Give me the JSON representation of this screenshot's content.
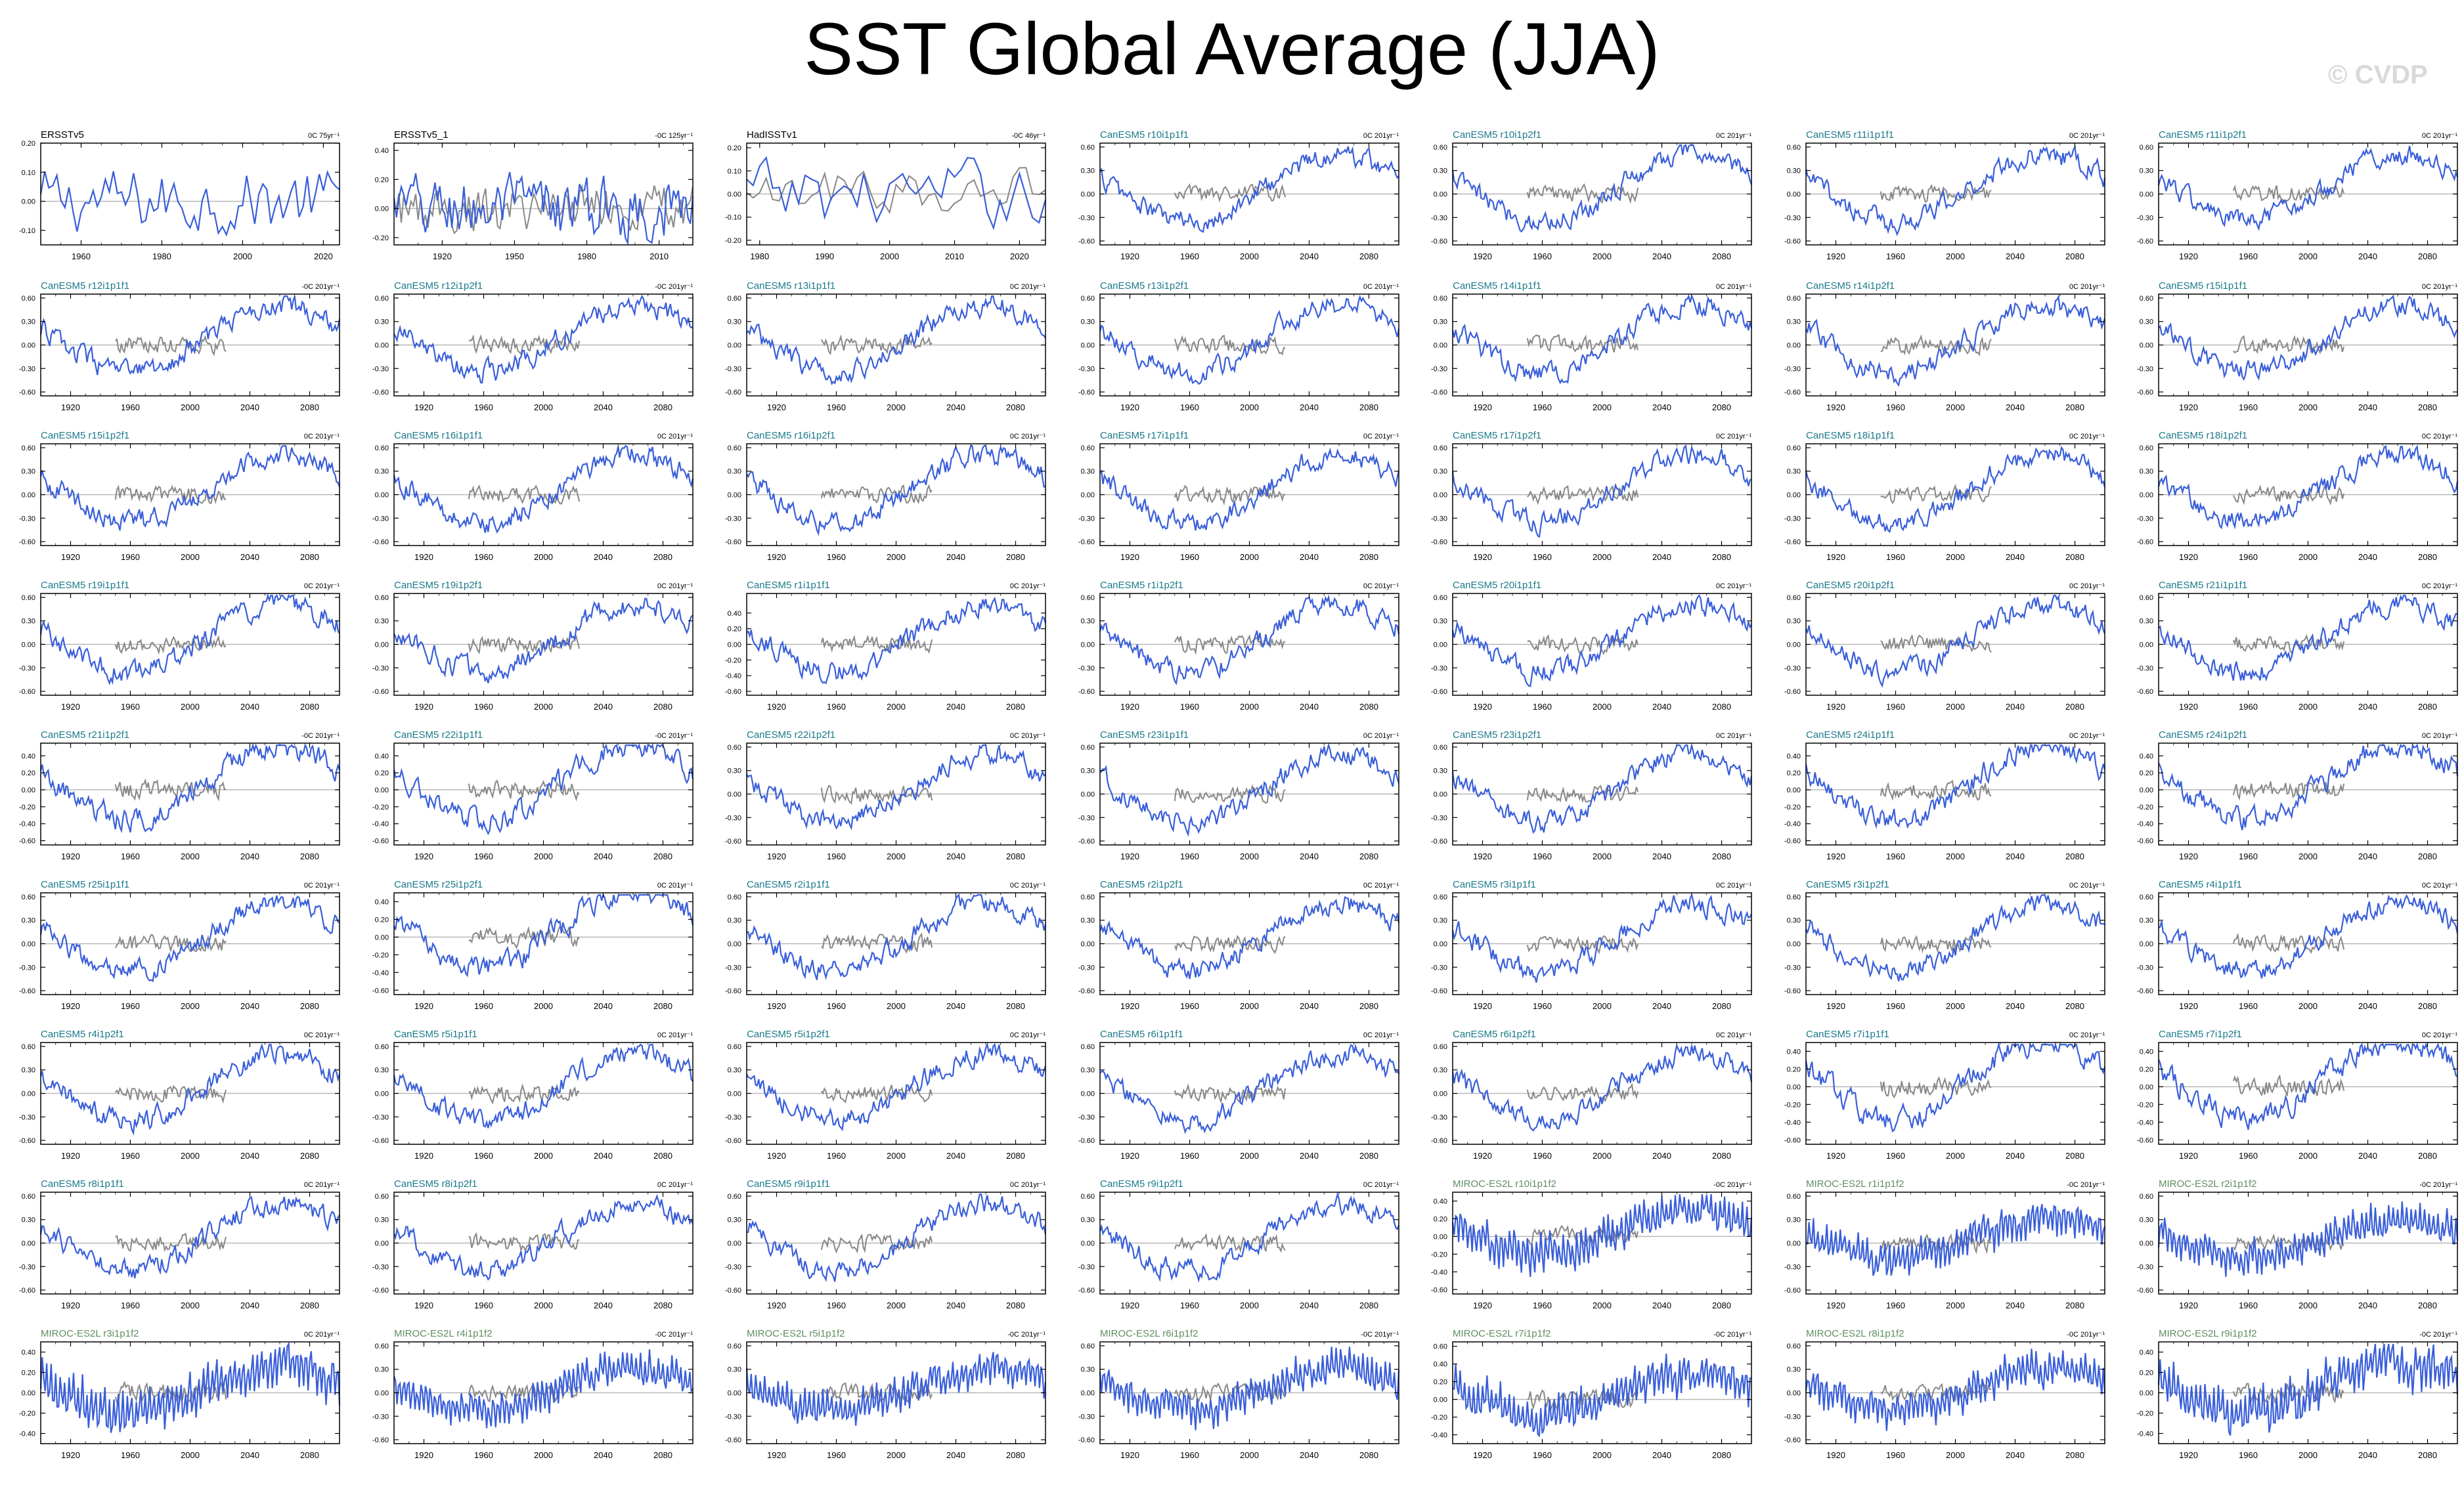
{
  "title": "SST Global Average (JJA)",
  "watermark": "© CVDP",
  "colors": {
    "series": "#3a5fd9",
    "obs": "#888888",
    "zero": "#b8b8b8",
    "canesm": "#1b7a8a",
    "miroc": "#5f8f5f",
    "obsLabel": "#000000"
  },
  "chart_data": [
    {
      "type": "line",
      "label": "ERSSTv5",
      "trend": "0C 75yr⁻¹",
      "xrange": [
        1950,
        2024
      ],
      "xticks": [
        1960,
        1980,
        2000,
        2020
      ],
      "yrange": [
        -0.15,
        0.2
      ],
      "yticks": [
        "0.20",
        "0.10",
        "0.00",
        "-0.10"
      ],
      "yvals": [
        0.2,
        0.1,
        0,
        -0.1
      ],
      "obs": false
    },
    {
      "type": "line",
      "label": "ERSSTv5_1",
      "trend": "-0C 125yr⁻¹",
      "xrange": [
        1900,
        2024
      ],
      "xticks": [
        1920,
        1950,
        1980,
        2010
      ],
      "yrange": [
        -0.25,
        0.45
      ],
      "yticks": [
        "0.40",
        "0.20",
        "0.00",
        "-0.20"
      ],
      "yvals": [
        0.4,
        0.2,
        0,
        -0.2
      ],
      "obs": true
    },
    {
      "type": "line",
      "label": "HadISSTv1",
      "trend": "-0C 46yr⁻¹",
      "xrange": [
        1978,
        2024
      ],
      "xticks": [
        1980,
        1990,
        2000,
        2010,
        2020
      ],
      "yrange": [
        -0.22,
        0.22
      ],
      "yticks": [
        "0.20",
        "0.10",
        "0.00",
        "-0.10",
        "-0.20"
      ],
      "yvals": [
        0.2,
        0.1,
        0,
        -0.1,
        -0.2
      ],
      "obs": true
    },
    {
      "type": "line",
      "label": "CanESM5 r10i1p1f1",
      "trend": "0C 201yr⁻¹"
    },
    {
      "type": "line",
      "label": "CanESM5 r10i1p2f1",
      "trend": "0C 201yr⁻¹"
    },
    {
      "type": "line",
      "label": "CanESM5 r11i1p1f1",
      "trend": "0C 201yr⁻¹"
    },
    {
      "type": "line",
      "label": "CanESM5 r11i1p2f1",
      "trend": "0C 201yr⁻¹"
    },
    {
      "type": "line",
      "label": "CanESM5 r12i1p1f1",
      "trend": "-0C 201yr⁻¹"
    },
    {
      "type": "line",
      "label": "CanESM5 r12i1p2f1",
      "trend": "-0C 201yr⁻¹"
    },
    {
      "type": "line",
      "label": "CanESM5 r13i1p1f1",
      "trend": "0C 201yr⁻¹"
    },
    {
      "type": "line",
      "label": "CanESM5 r13i1p2f1",
      "trend": "0C 201yr⁻¹"
    },
    {
      "type": "line",
      "label": "CanESM5 r14i1p1f1",
      "trend": "0C 201yr⁻¹"
    },
    {
      "type": "line",
      "label": "CanESM5 r14i1p2f1",
      "trend": "0C 201yr⁻¹"
    },
    {
      "type": "line",
      "label": "CanESM5 r15i1p1f1",
      "trend": "0C 201yr⁻¹"
    },
    {
      "type": "line",
      "label": "CanESM5 r15i1p2f1",
      "trend": "0C 201yr⁻¹"
    },
    {
      "type": "line",
      "label": "CanESM5 r16i1p1f1",
      "trend": "0C 201yr⁻¹"
    },
    {
      "type": "line",
      "label": "CanESM5 r16i1p2f1",
      "trend": "0C 201yr⁻¹"
    },
    {
      "type": "line",
      "label": "CanESM5 r17i1p1f1",
      "trend": "0C 201yr⁻¹"
    },
    {
      "type": "line",
      "label": "CanESM5 r17i1p2f1",
      "trend": "0C 201yr⁻¹"
    },
    {
      "type": "line",
      "label": "CanESM5 r18i1p1f1",
      "trend": "0C 201yr⁻¹"
    },
    {
      "type": "line",
      "label": "CanESM5 r18i1p2f1",
      "trend": "0C 201yr⁻¹"
    },
    {
      "type": "line",
      "label": "CanESM5 r19i1p1f1",
      "trend": "0C 201yr⁻¹"
    },
    {
      "type": "line",
      "label": "CanESM5 r19i1p2f1",
      "trend": "0C 201yr⁻¹"
    },
    {
      "type": "line",
      "label": "CanESM5 r1i1p1f1",
      "trend": "0C 201yr⁻¹",
      "yrange": [
        -0.65,
        0.65
      ],
      "yticks": [
        "0.40",
        "0.20",
        "0.00",
        "-0.20",
        "-0.40",
        "-0.60"
      ],
      "yvals": [
        0.4,
        0.2,
        0,
        -0.2,
        -0.4,
        -0.6
      ]
    },
    {
      "type": "line",
      "label": "CanESM5 r1i1p2f1",
      "trend": "0C 201yr⁻¹"
    },
    {
      "type": "line",
      "label": "CanESM5 r20i1p1f1",
      "trend": "0C 201yr⁻¹"
    },
    {
      "type": "line",
      "label": "CanESM5 r20i1p2f1",
      "trend": "0C 201yr⁻¹"
    },
    {
      "type": "line",
      "label": "CanESM5 r21i1p1f1",
      "trend": "0C 201yr⁻¹"
    },
    {
      "type": "line",
      "label": "CanESM5 r21i1p2f1",
      "trend": "-0C 201yr⁻¹",
      "yrange": [
        -0.65,
        0.55
      ],
      "yticks": [
        "0.40",
        "0.20",
        "0.00",
        "-0.20",
        "-0.40",
        "-0.60"
      ],
      "yvals": [
        0.4,
        0.2,
        0,
        -0.2,
        -0.4,
        -0.6
      ]
    },
    {
      "type": "line",
      "label": "CanESM5 r22i1p1f1",
      "trend": "-0C 201yr⁻¹",
      "yrange": [
        -0.65,
        0.55
      ],
      "yticks": [
        "0.40",
        "0.20",
        "0.00",
        "-0.20",
        "-0.40",
        "-0.60"
      ],
      "yvals": [
        0.4,
        0.2,
        0,
        -0.2,
        -0.4,
        -0.6
      ]
    },
    {
      "type": "line",
      "label": "CanESM5 r22i1p2f1",
      "trend": "0C 201yr⁻¹"
    },
    {
      "type": "line",
      "label": "CanESM5 r23i1p1f1",
      "trend": "0C 201yr⁻¹"
    },
    {
      "type": "line",
      "label": "CanESM5 r23i1p2f1",
      "trend": "0C 201yr⁻¹"
    },
    {
      "type": "line",
      "label": "CanESM5 r24i1p1f1",
      "trend": "0C 201yr⁻¹",
      "yrange": [
        -0.65,
        0.55
      ],
      "yticks": [
        "0.40",
        "0.20",
        "0.00",
        "-0.20",
        "-0.40",
        "-0.60"
      ],
      "yvals": [
        0.4,
        0.2,
        0,
        -0.2,
        -0.4,
        -0.6
      ]
    },
    {
      "type": "line",
      "label": "CanESM5 r24i1p2f1",
      "trend": "0C 201yr⁻¹",
      "yrange": [
        -0.65,
        0.55
      ],
      "yticks": [
        "0.40",
        "0.20",
        "0.00",
        "-0.20",
        "-0.40",
        "-0.60"
      ],
      "yvals": [
        0.4,
        0.2,
        0,
        -0.2,
        -0.4,
        -0.6
      ]
    },
    {
      "type": "line",
      "label": "CanESM5 r25i1p1f1",
      "trend": "0C 201yr⁻¹"
    },
    {
      "type": "line",
      "label": "CanESM5 r25i1p2f1",
      "trend": "0C 201yr⁻¹",
      "yrange": [
        -0.65,
        0.5
      ],
      "yticks": [
        "0.40",
        "0.20",
        "0.00",
        "-0.20",
        "-0.40",
        "-0.60"
      ],
      "yvals": [
        0.4,
        0.2,
        0,
        -0.2,
        -0.4,
        -0.6
      ]
    },
    {
      "type": "line",
      "label": "CanESM5 r2i1p1f1",
      "trend": "0C 201yr⁻¹"
    },
    {
      "type": "line",
      "label": "CanESM5 r2i1p2f1",
      "trend": "0C 201yr⁻¹"
    },
    {
      "type": "line",
      "label": "CanESM5 r3i1p1f1",
      "trend": "0C 201yr⁻¹"
    },
    {
      "type": "line",
      "label": "CanESM5 r3i1p2f1",
      "trend": "0C 201yr⁻¹"
    },
    {
      "type": "line",
      "label": "CanESM5 r4i1p1f1",
      "trend": "0C 201yr⁻¹"
    },
    {
      "type": "line",
      "label": "CanESM5 r4i1p2f1",
      "trend": "0C 201yr⁻¹"
    },
    {
      "type": "line",
      "label": "CanESM5 r5i1p1f1",
      "trend": "0C 201yr⁻¹"
    },
    {
      "type": "line",
      "label": "CanESM5 r5i1p2f1",
      "trend": "0C 201yr⁻¹"
    },
    {
      "type": "line",
      "label": "CanESM5 r6i1p1f1",
      "trend": "0C 201yr⁻¹"
    },
    {
      "type": "line",
      "label": "CanESM5 r6i1p2f1",
      "trend": "0C 201yr⁻¹"
    },
    {
      "type": "line",
      "label": "CanESM5 r7i1p1f1",
      "trend": "0C 201yr⁻¹",
      "yrange": [
        -0.65,
        0.5
      ],
      "yticks": [
        "0.40",
        "0.20",
        "0.00",
        "-0.20",
        "-0.40",
        "-0.60"
      ],
      "yvals": [
        0.4,
        0.2,
        0,
        -0.2,
        -0.4,
        -0.6
      ]
    },
    {
      "type": "line",
      "label": "CanESM5 r7i1p2f1",
      "trend": "0C 201yr⁻¹",
      "yrange": [
        -0.65,
        0.5
      ],
      "yticks": [
        "0.40",
        "0.20",
        "0.00",
        "-0.20",
        "-0.40",
        "-0.60"
      ],
      "yvals": [
        0.4,
        0.2,
        0,
        -0.2,
        -0.4,
        -0.6
      ]
    },
    {
      "type": "line",
      "label": "CanESM5 r8i1p1f1",
      "trend": "0C 201yr⁻¹"
    },
    {
      "type": "line",
      "label": "CanESM5 r8i1p2f1",
      "trend": "0C 201yr⁻¹"
    },
    {
      "type": "line",
      "label": "CanESM5 r9i1p1f1",
      "trend": "0C 201yr⁻¹"
    },
    {
      "type": "line",
      "label": "CanESM5 r9i1p2f1",
      "trend": "0C 201yr⁻¹"
    },
    {
      "type": "line",
      "label": "MIROC-ES2L r10i1p1f2",
      "trend": "-0C 201yr⁻¹",
      "model": "miroc",
      "yrange": [
        -0.65,
        0.5
      ],
      "yticks": [
        "0.40",
        "0.20",
        "0.00",
        "-0.20",
        "-0.40",
        "-0.60"
      ],
      "yvals": [
        0.4,
        0.2,
        0,
        -0.2,
        -0.4,
        -0.6
      ]
    },
    {
      "type": "line",
      "label": "MIROC-ES2L r1i1p1f2",
      "trend": "-0C 201yr⁻¹",
      "model": "miroc"
    },
    {
      "type": "line",
      "label": "MIROC-ES2L r2i1p1f2",
      "trend": "-0C 201yr⁻¹",
      "model": "miroc"
    },
    {
      "type": "line",
      "label": "MIROC-ES2L r3i1p1f2",
      "trend": "0C 201yr⁻¹",
      "model": "miroc",
      "yrange": [
        -0.5,
        0.5
      ],
      "yticks": [
        "0.40",
        "0.20",
        "0.00",
        "-0.20",
        "-0.40"
      ],
      "yvals": [
        0.4,
        0.2,
        0,
        -0.2,
        -0.4
      ]
    },
    {
      "type": "line",
      "label": "MIROC-ES2L r4i1p1f2",
      "trend": "-0C 201yr⁻¹",
      "model": "miroc"
    },
    {
      "type": "line",
      "label": "MIROC-ES2L r5i1p1f2",
      "trend": "-0C 201yr⁻¹",
      "model": "miroc"
    },
    {
      "type": "line",
      "label": "MIROC-ES2L r6i1p1f2",
      "trend": "-0C 201yr⁻¹",
      "model": "miroc"
    },
    {
      "type": "line",
      "label": "MIROC-ES2L r7i1p1f2",
      "trend": "-0C 201yr⁻¹",
      "model": "miroc",
      "yrange": [
        -0.5,
        0.65
      ],
      "yticks": [
        "0.60",
        "0.40",
        "0.20",
        "0.00",
        "-0.20",
        "-0.40"
      ],
      "yvals": [
        0.6,
        0.4,
        0.2,
        0,
        -0.2,
        -0.4
      ]
    },
    {
      "type": "line",
      "label": "MIROC-ES2L r8i1p1f2",
      "trend": "-0C 201yr⁻¹",
      "model": "miroc"
    },
    {
      "type": "line",
      "label": "MIROC-ES2L r9i1p1f2",
      "trend": "-0C 201yr⁻¹",
      "model": "miroc",
      "yrange": [
        -0.5,
        0.5
      ],
      "yticks": [
        "0.40",
        "0.20",
        "0.00",
        "-0.20",
        "-0.40"
      ],
      "yvals": [
        0.4,
        0.2,
        0,
        -0.2,
        -0.4
      ]
    }
  ],
  "defaults": {
    "xrange": [
      1900,
      2100
    ],
    "xticks": [
      1920,
      1960,
      2000,
      2040,
      2080
    ],
    "yrange": [
      -0.65,
      0.65
    ],
    "yticks": [
      "0.60",
      "0.30",
      "0.00",
      "-0.30",
      "-0.60"
    ],
    "yvals": [
      0.6,
      0.3,
      0,
      -0.3,
      -0.6
    ],
    "obs": true
  }
}
